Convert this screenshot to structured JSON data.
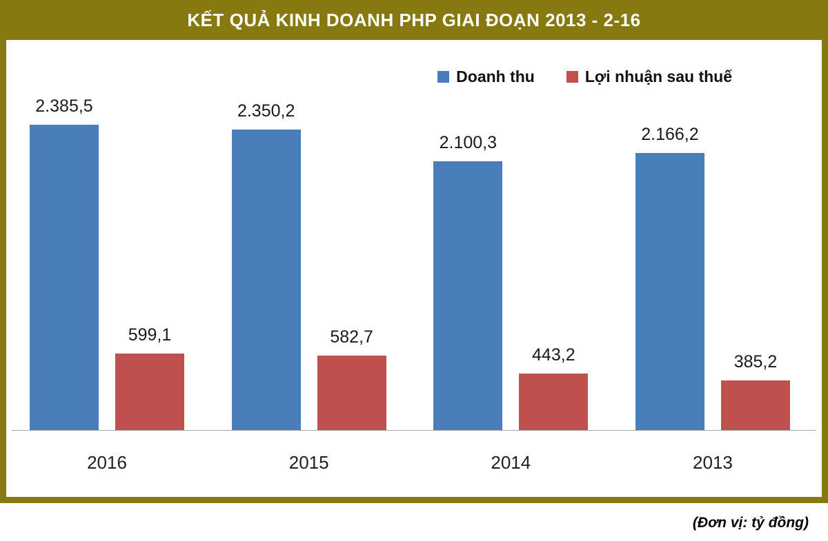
{
  "title": "KẾT QUẢ KINH DOANH PHP GIAI ĐOẠN 2013 - 2-16",
  "unit_note": "(Đơn vị: tỷ đồng)",
  "colors": {
    "header": "#85790f",
    "revenue": "#4a7ebb",
    "profit": "#c0504d",
    "axis": "#a6a6a6"
  },
  "chart_data": {
    "type": "bar",
    "categories": [
      "2016",
      "2015",
      "2014",
      "2013"
    ],
    "series": [
      {
        "name": "Doanh thu",
        "color": "#4a7ebb",
        "values": [
          2385.5,
          2350.2,
          2100.3,
          2166.2
        ],
        "labels": [
          "2.385,5",
          "2.350,2",
          "2.100,3",
          "2.166,2"
        ]
      },
      {
        "name": "Lợi nhuận sau thuế",
        "color": "#c0504d",
        "values": [
          599.1,
          582.7,
          443.2,
          385.2
        ],
        "labels": [
          "599,1",
          "582,7",
          "443,2",
          "385,2"
        ]
      }
    ],
    "ylim": [
      0,
      2385.5
    ],
    "grid": false,
    "legend_position": "top-right"
  }
}
